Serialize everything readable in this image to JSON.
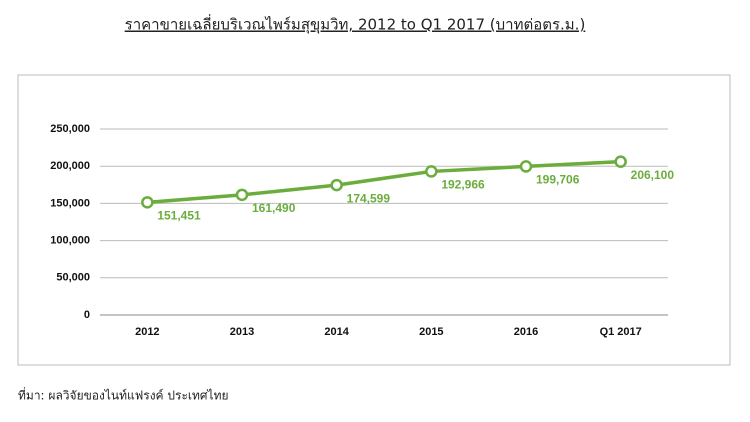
{
  "chart_data": {
    "type": "line",
    "title": "ราคาขายเฉลี่ยบริเวณไพร์มสุขุมวิท, 2012 to Q1 2017 (บาทต่อตร.ม.)",
    "categories": [
      "2012",
      "2013",
      "2014",
      "2015",
      "2016",
      "Q1 2017"
    ],
    "series": [
      {
        "name": "ราคาขายเฉลี่ย",
        "color": "#6aad3d",
        "values": [
          151451,
          161490,
          174599,
          192966,
          199706,
          206100
        ],
        "value_labels": [
          "151,451",
          "161,490",
          "174,599",
          "192,966",
          "199,706",
          "206,100"
        ]
      }
    ],
    "ylim": [
      0,
      250000
    ],
    "yticks": [
      {
        "value": 0,
        "label": "0"
      },
      {
        "value": 50000,
        "label": "50,000"
      },
      {
        "value": 100000,
        "label": "100,000"
      },
      {
        "value": 150000,
        "label": "150,000"
      },
      {
        "value": 200000,
        "label": "200,000"
      },
      {
        "value": 250000,
        "label": "250,000"
      }
    ],
    "grid": true,
    "source": "ที่มา: ผลวิจัยของไนท์แฟรงค์ ประเทศไทย"
  }
}
